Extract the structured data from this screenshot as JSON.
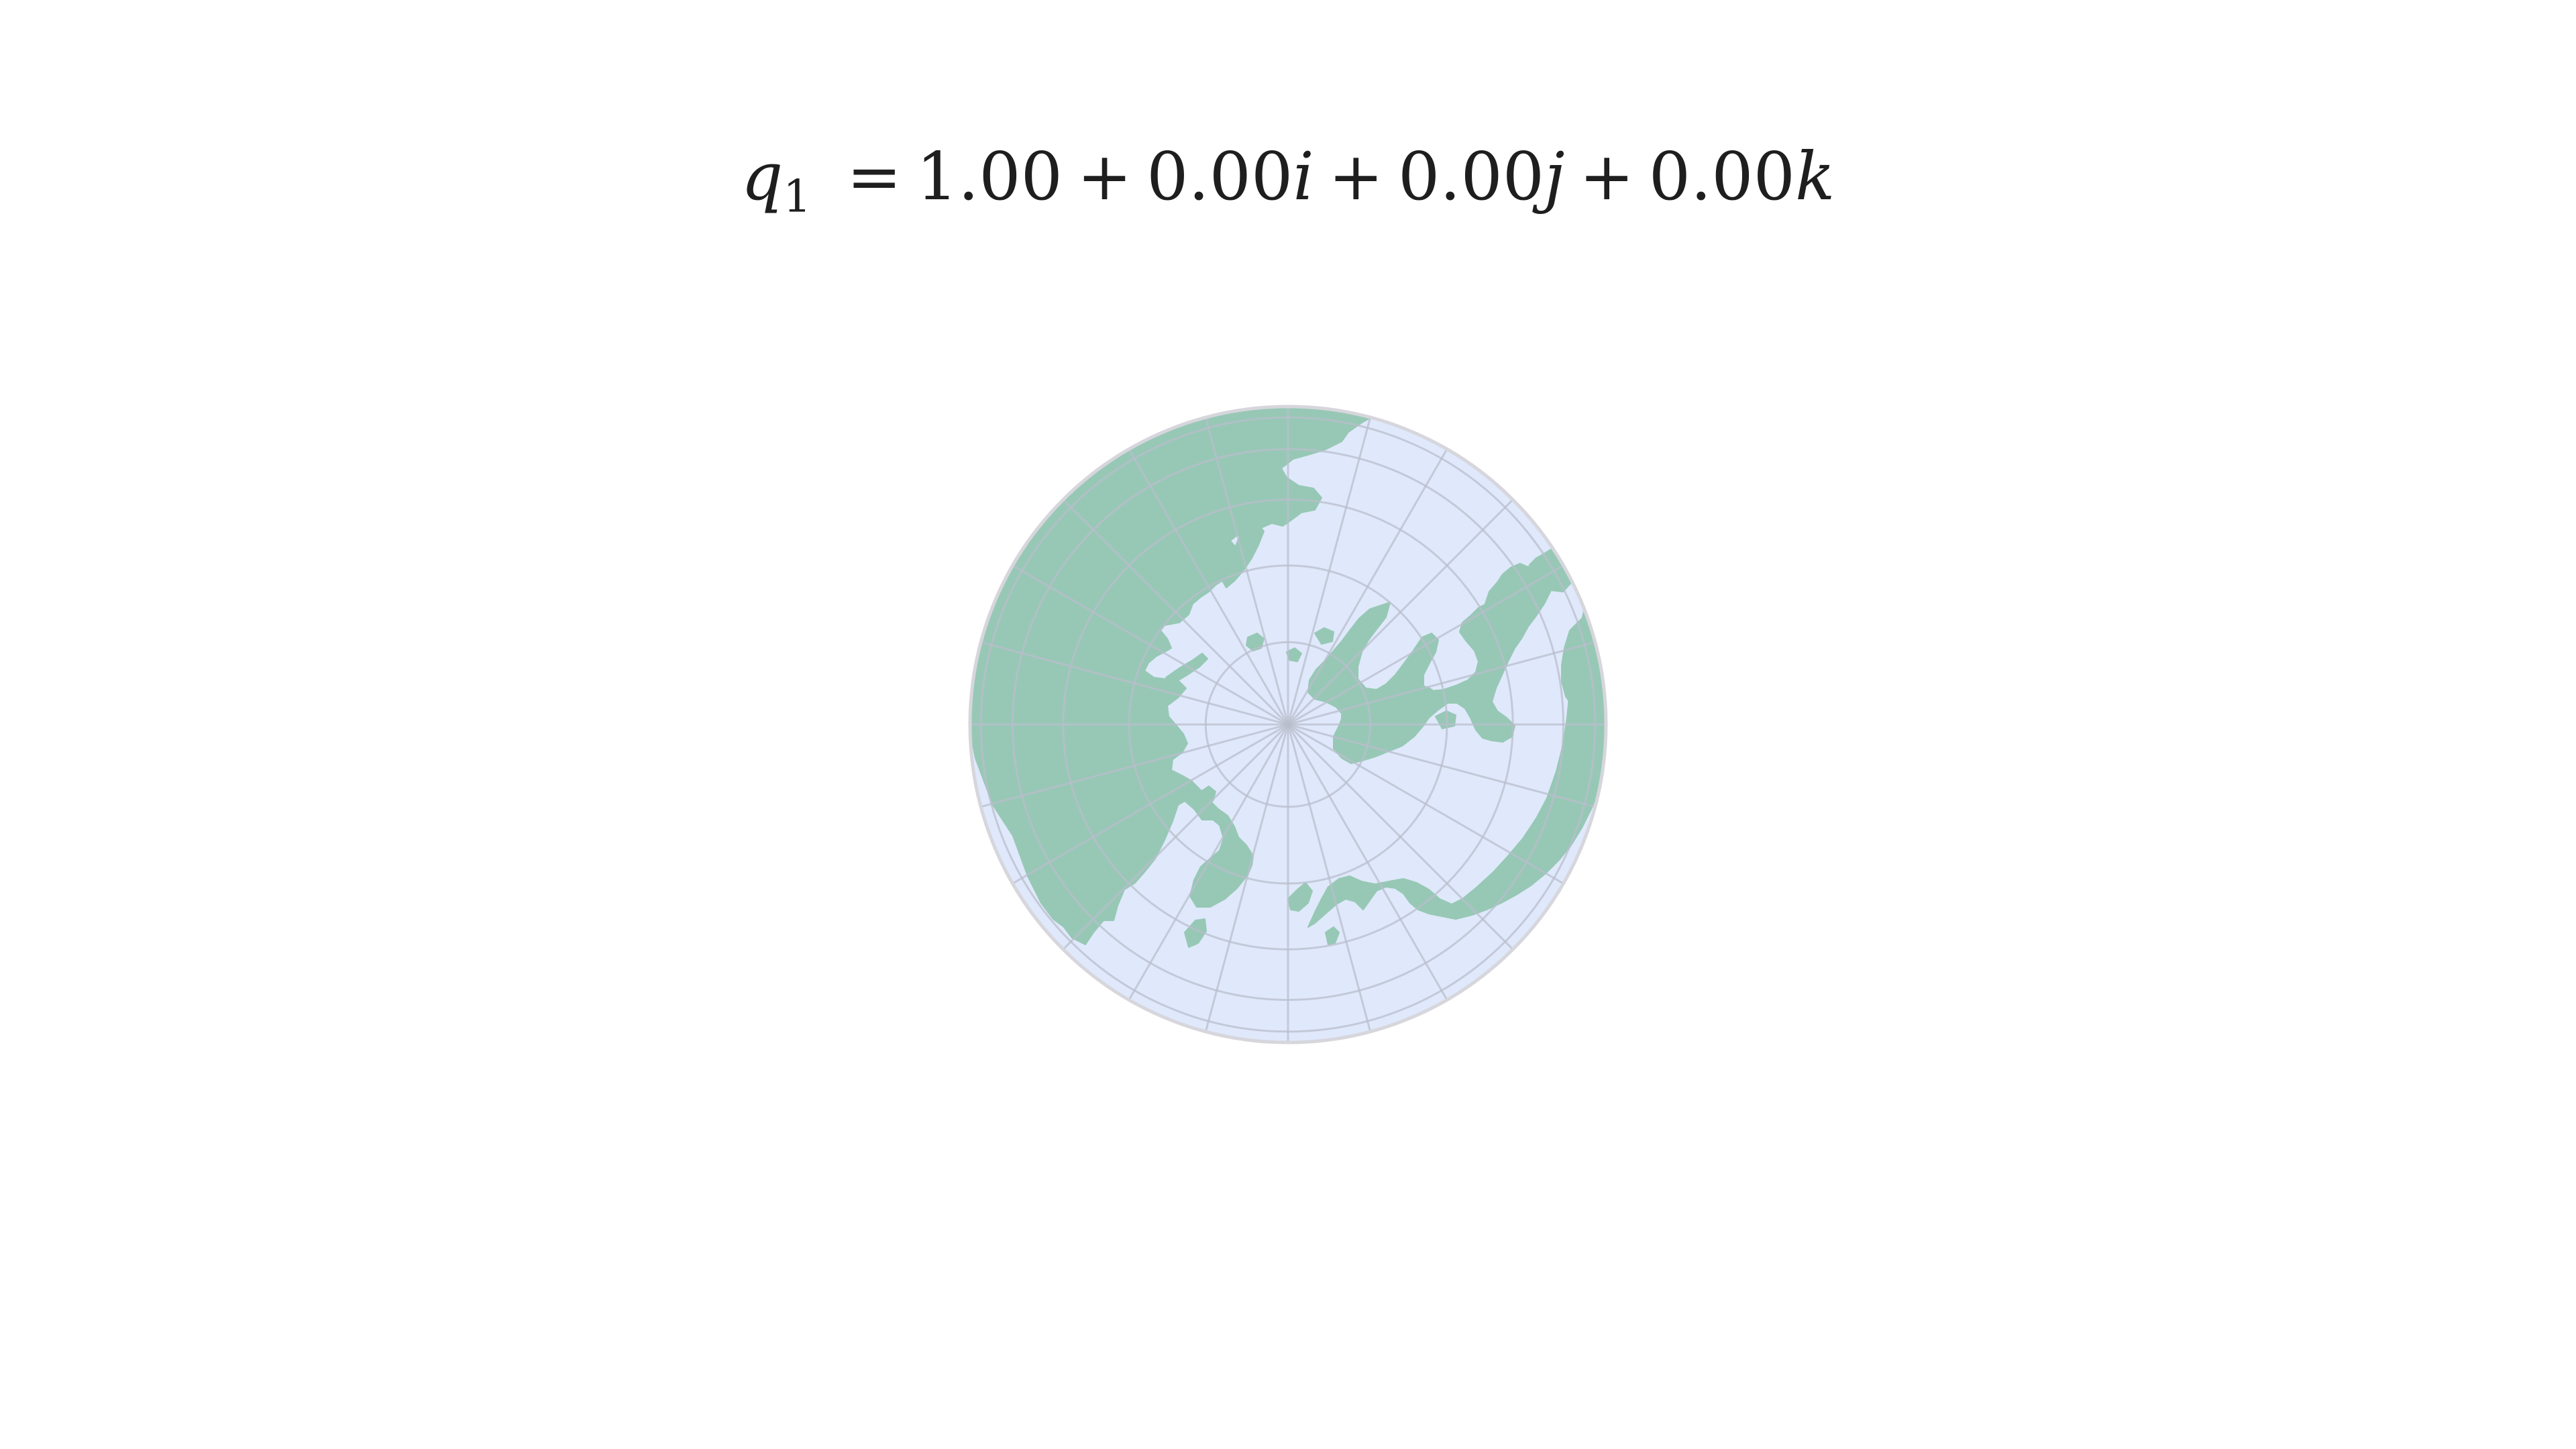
{
  "title": {
    "variable": "q",
    "subscript": "1",
    "equals": "=",
    "terms": [
      {
        "op": "",
        "value": "1.00",
        "unit": ""
      },
      {
        "op": "+",
        "value": "0.00",
        "unit": "i"
      },
      {
        "op": "+",
        "value": "0.00",
        "unit": "j"
      },
      {
        "op": "+",
        "value": "0.00",
        "unit": "k"
      }
    ]
  },
  "quaternion": {
    "w": 1.0,
    "x": 0.0,
    "y": 0.0,
    "z": 0.0
  },
  "map": {
    "projection": "orthographic",
    "view_center": "north-pole",
    "colors": {
      "ocean": "#dfe9fb",
      "land": "#97c8b5",
      "graticule": "#b9bdcc",
      "outline": "#d6d6dc"
    }
  }
}
